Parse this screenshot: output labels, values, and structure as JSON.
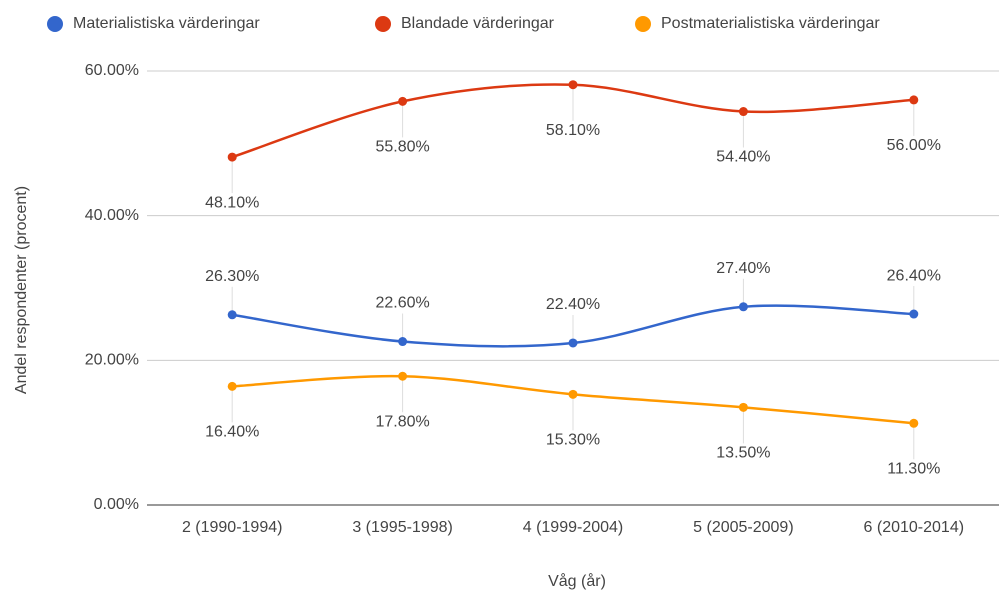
{
  "chart_data": {
    "type": "line",
    "x_label": "Våg (år)",
    "y_label": "Andel respondenter (procent)",
    "categories": [
      "2 (1990-1994)",
      "3 (1995-1998)",
      "4 (1999-2004)",
      "5 (2005-2009)",
      "6 (2010-2014)"
    ],
    "series": [
      {
        "name": "Materialistiska värderingar",
        "color": "#3366cc",
        "values": [
          26.3,
          22.6,
          22.4,
          27.4,
          26.4
        ],
        "value_labels": [
          "26.30%",
          "22.60%",
          "22.40%",
          "27.40%",
          "26.40%"
        ]
      },
      {
        "name": "Blandade värderingar",
        "color": "#dc3912",
        "values": [
          48.1,
          55.8,
          58.1,
          54.4,
          56.0
        ],
        "value_labels": [
          "48.10%",
          "55.80%",
          "58.10%",
          "54.40%",
          "56.00%"
        ]
      },
      {
        "name": "Postmaterialistiska värderingar",
        "color": "#ff9900",
        "values": [
          16.4,
          17.8,
          15.3,
          13.5,
          11.3
        ],
        "value_labels": [
          "16.40%",
          "17.80%",
          "15.30%",
          "13.50%",
          "11.30%"
        ]
      }
    ],
    "ylim": [
      0,
      60
    ],
    "yticks": [
      {
        "value": 0,
        "label": "0.00%"
      },
      {
        "value": 20,
        "label": "20.00%"
      },
      {
        "value": 40,
        "label": "40.00%"
      },
      {
        "value": 60,
        "label": "60.00%"
      }
    ],
    "grid": true,
    "legend": "top",
    "smooth": true
  }
}
